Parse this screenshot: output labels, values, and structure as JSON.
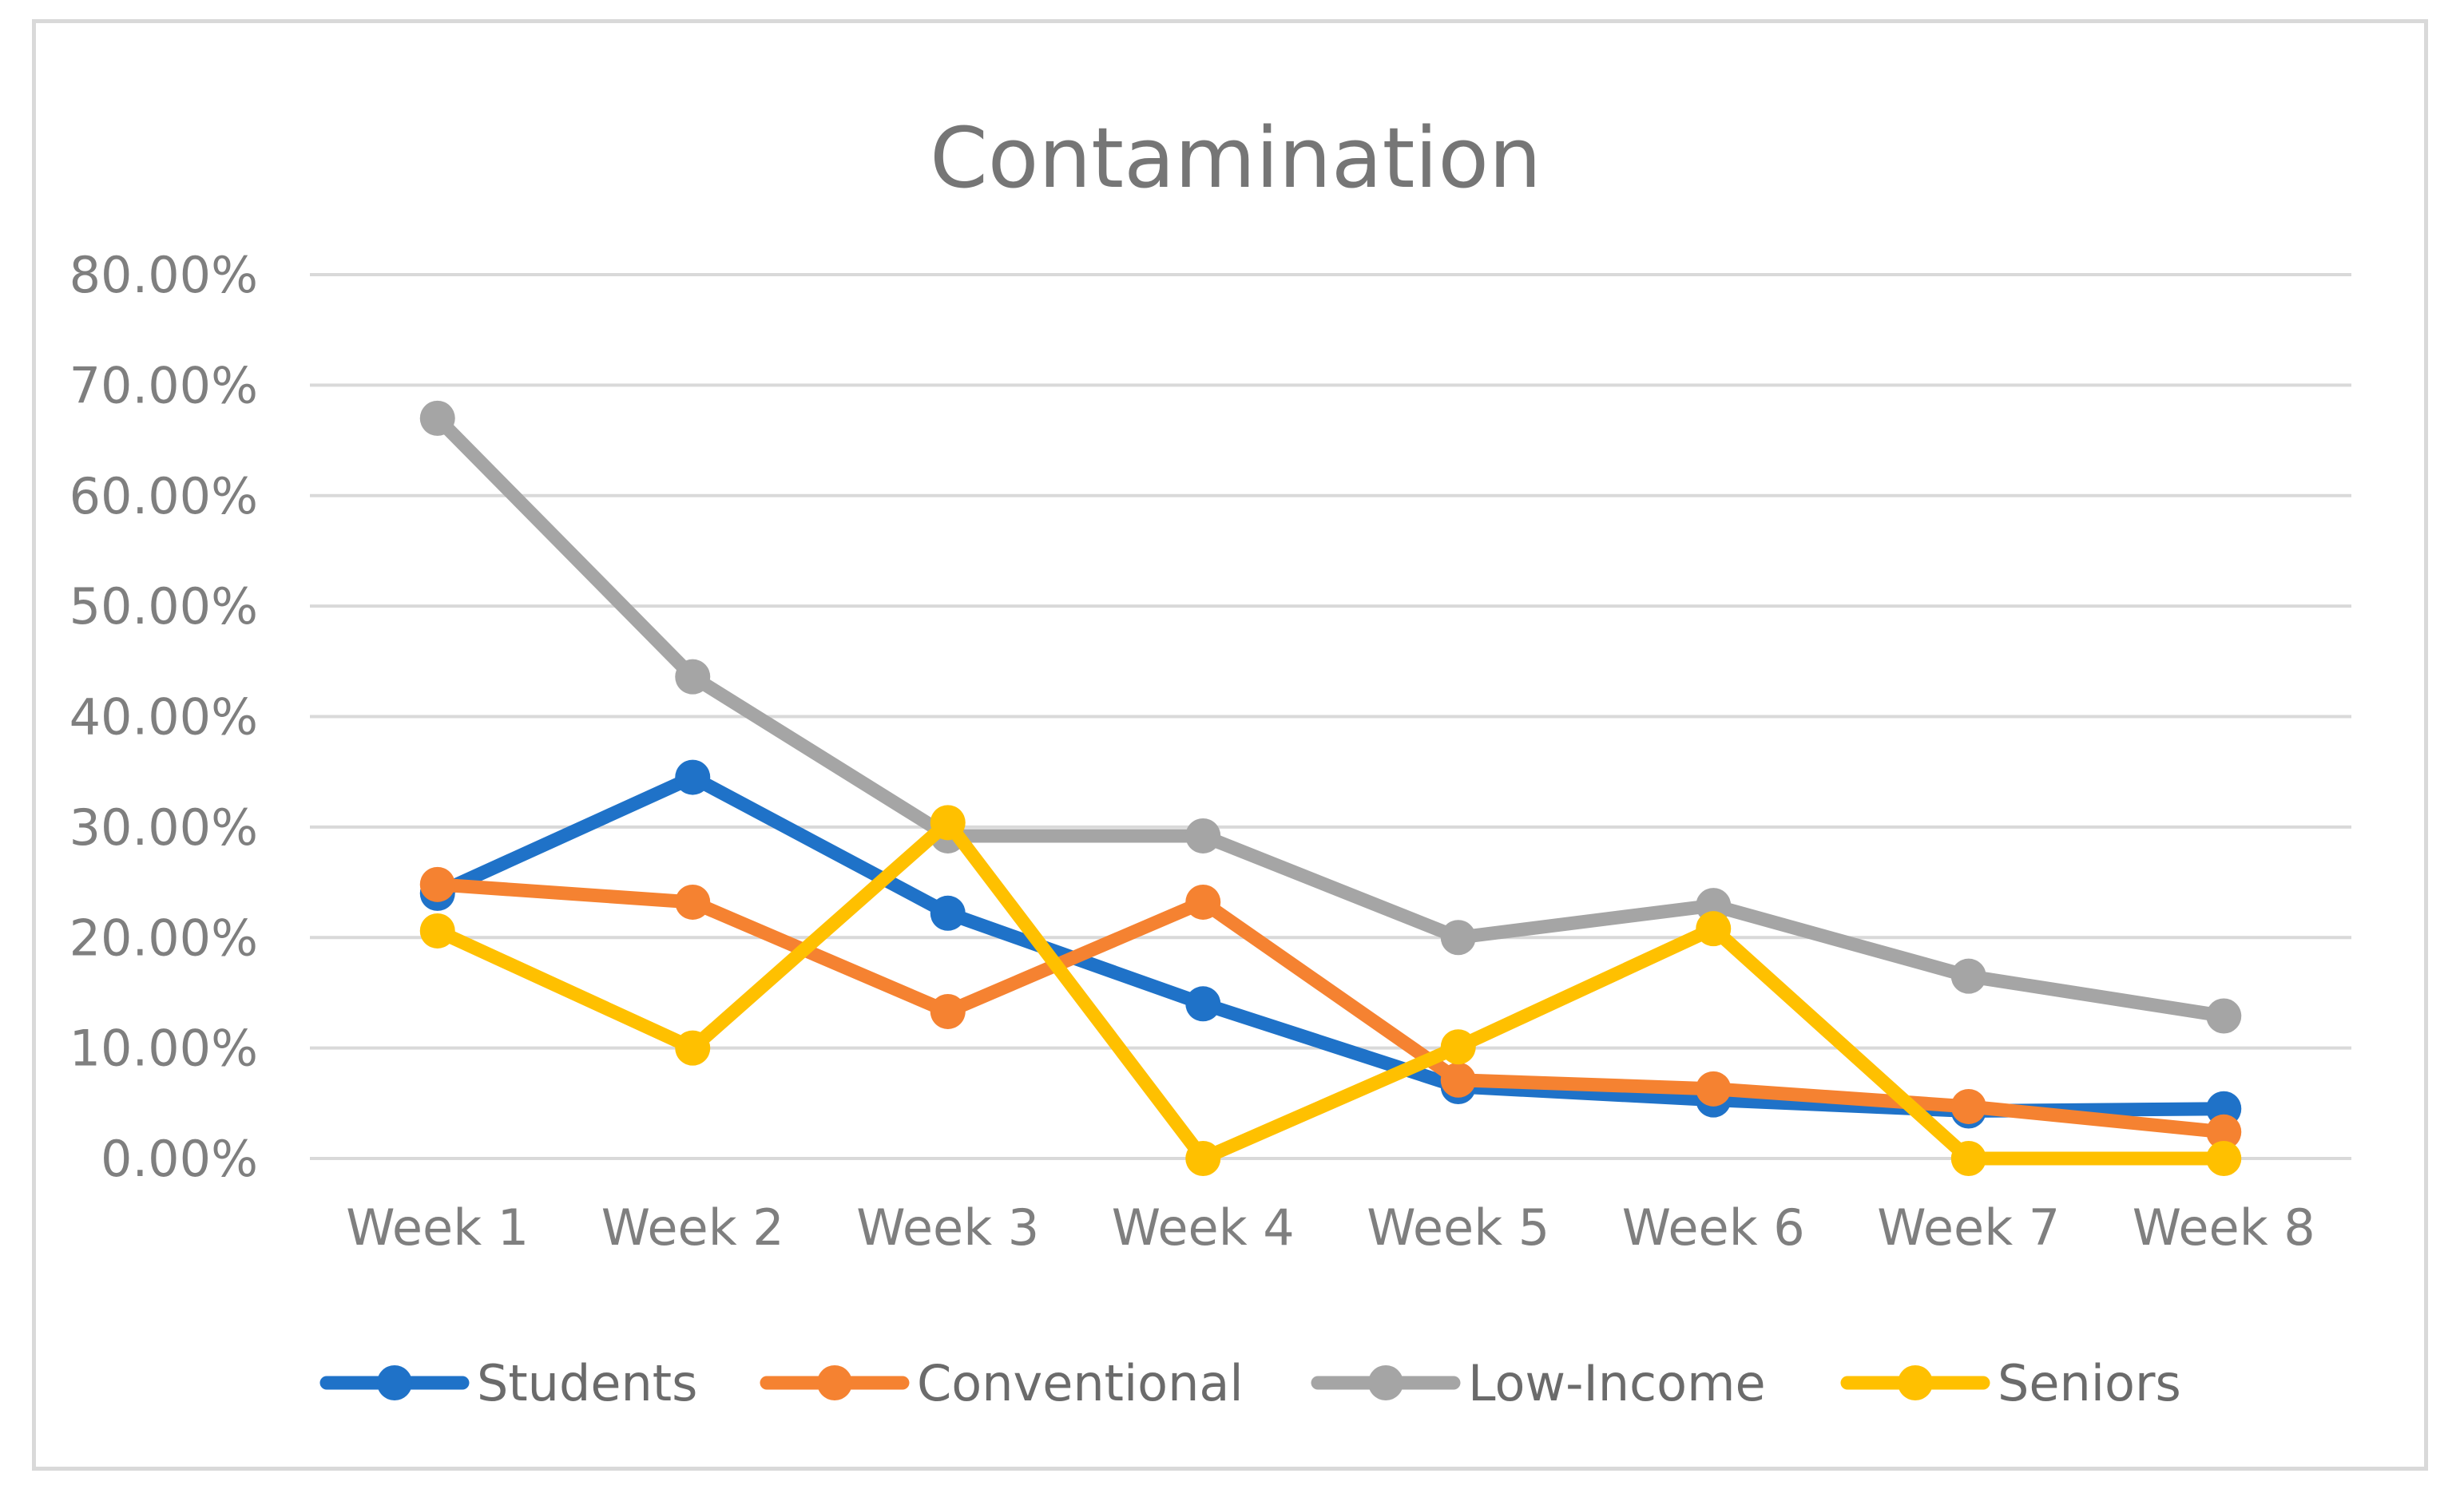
{
  "chart_data": {
    "type": "line",
    "title": "Contamination",
    "xlabel": "",
    "ylabel": "",
    "categories": [
      "Week 1",
      "Week 2",
      "Week 3",
      "Week 4",
      "Week 5",
      "Week 6",
      "Week 7",
      "Week 8"
    ],
    "ylim": [
      0,
      0.8
    ],
    "yticks": [
      0,
      0.1,
      0.2,
      0.3,
      0.4,
      0.5,
      0.6,
      0.7,
      0.8
    ],
    "ytick_labels": [
      "0.00%",
      "10.00%",
      "20.00%",
      "30.00%",
      "40.00%",
      "50.00%",
      "60.00%",
      "70.00%",
      "80.00%"
    ],
    "grid": true,
    "legend_position": "bottom",
    "series": [
      {
        "name": "Students",
        "color": "#1f72c8",
        "values": [
          0.24,
          0.345,
          0.222,
          0.14,
          0.065,
          0.053,
          0.043,
          0.045
        ]
      },
      {
        "name": "Conventional",
        "color": "#f58231",
        "values": [
          0.248,
          0.232,
          0.133,
          0.232,
          0.071,
          0.063,
          0.047,
          0.024
        ]
      },
      {
        "name": "Low-Income",
        "color": "#a5a5a5",
        "values": [
          0.67,
          0.436,
          0.292,
          0.292,
          0.2,
          0.229,
          0.165,
          0.129
        ]
      },
      {
        "name": "Seniors",
        "color": "#ffc000",
        "values": [
          0.206,
          0.1,
          0.304,
          0.0,
          0.101,
          0.208,
          0.0,
          0.0
        ]
      }
    ],
    "gridline_color": "#d9d9d9"
  }
}
